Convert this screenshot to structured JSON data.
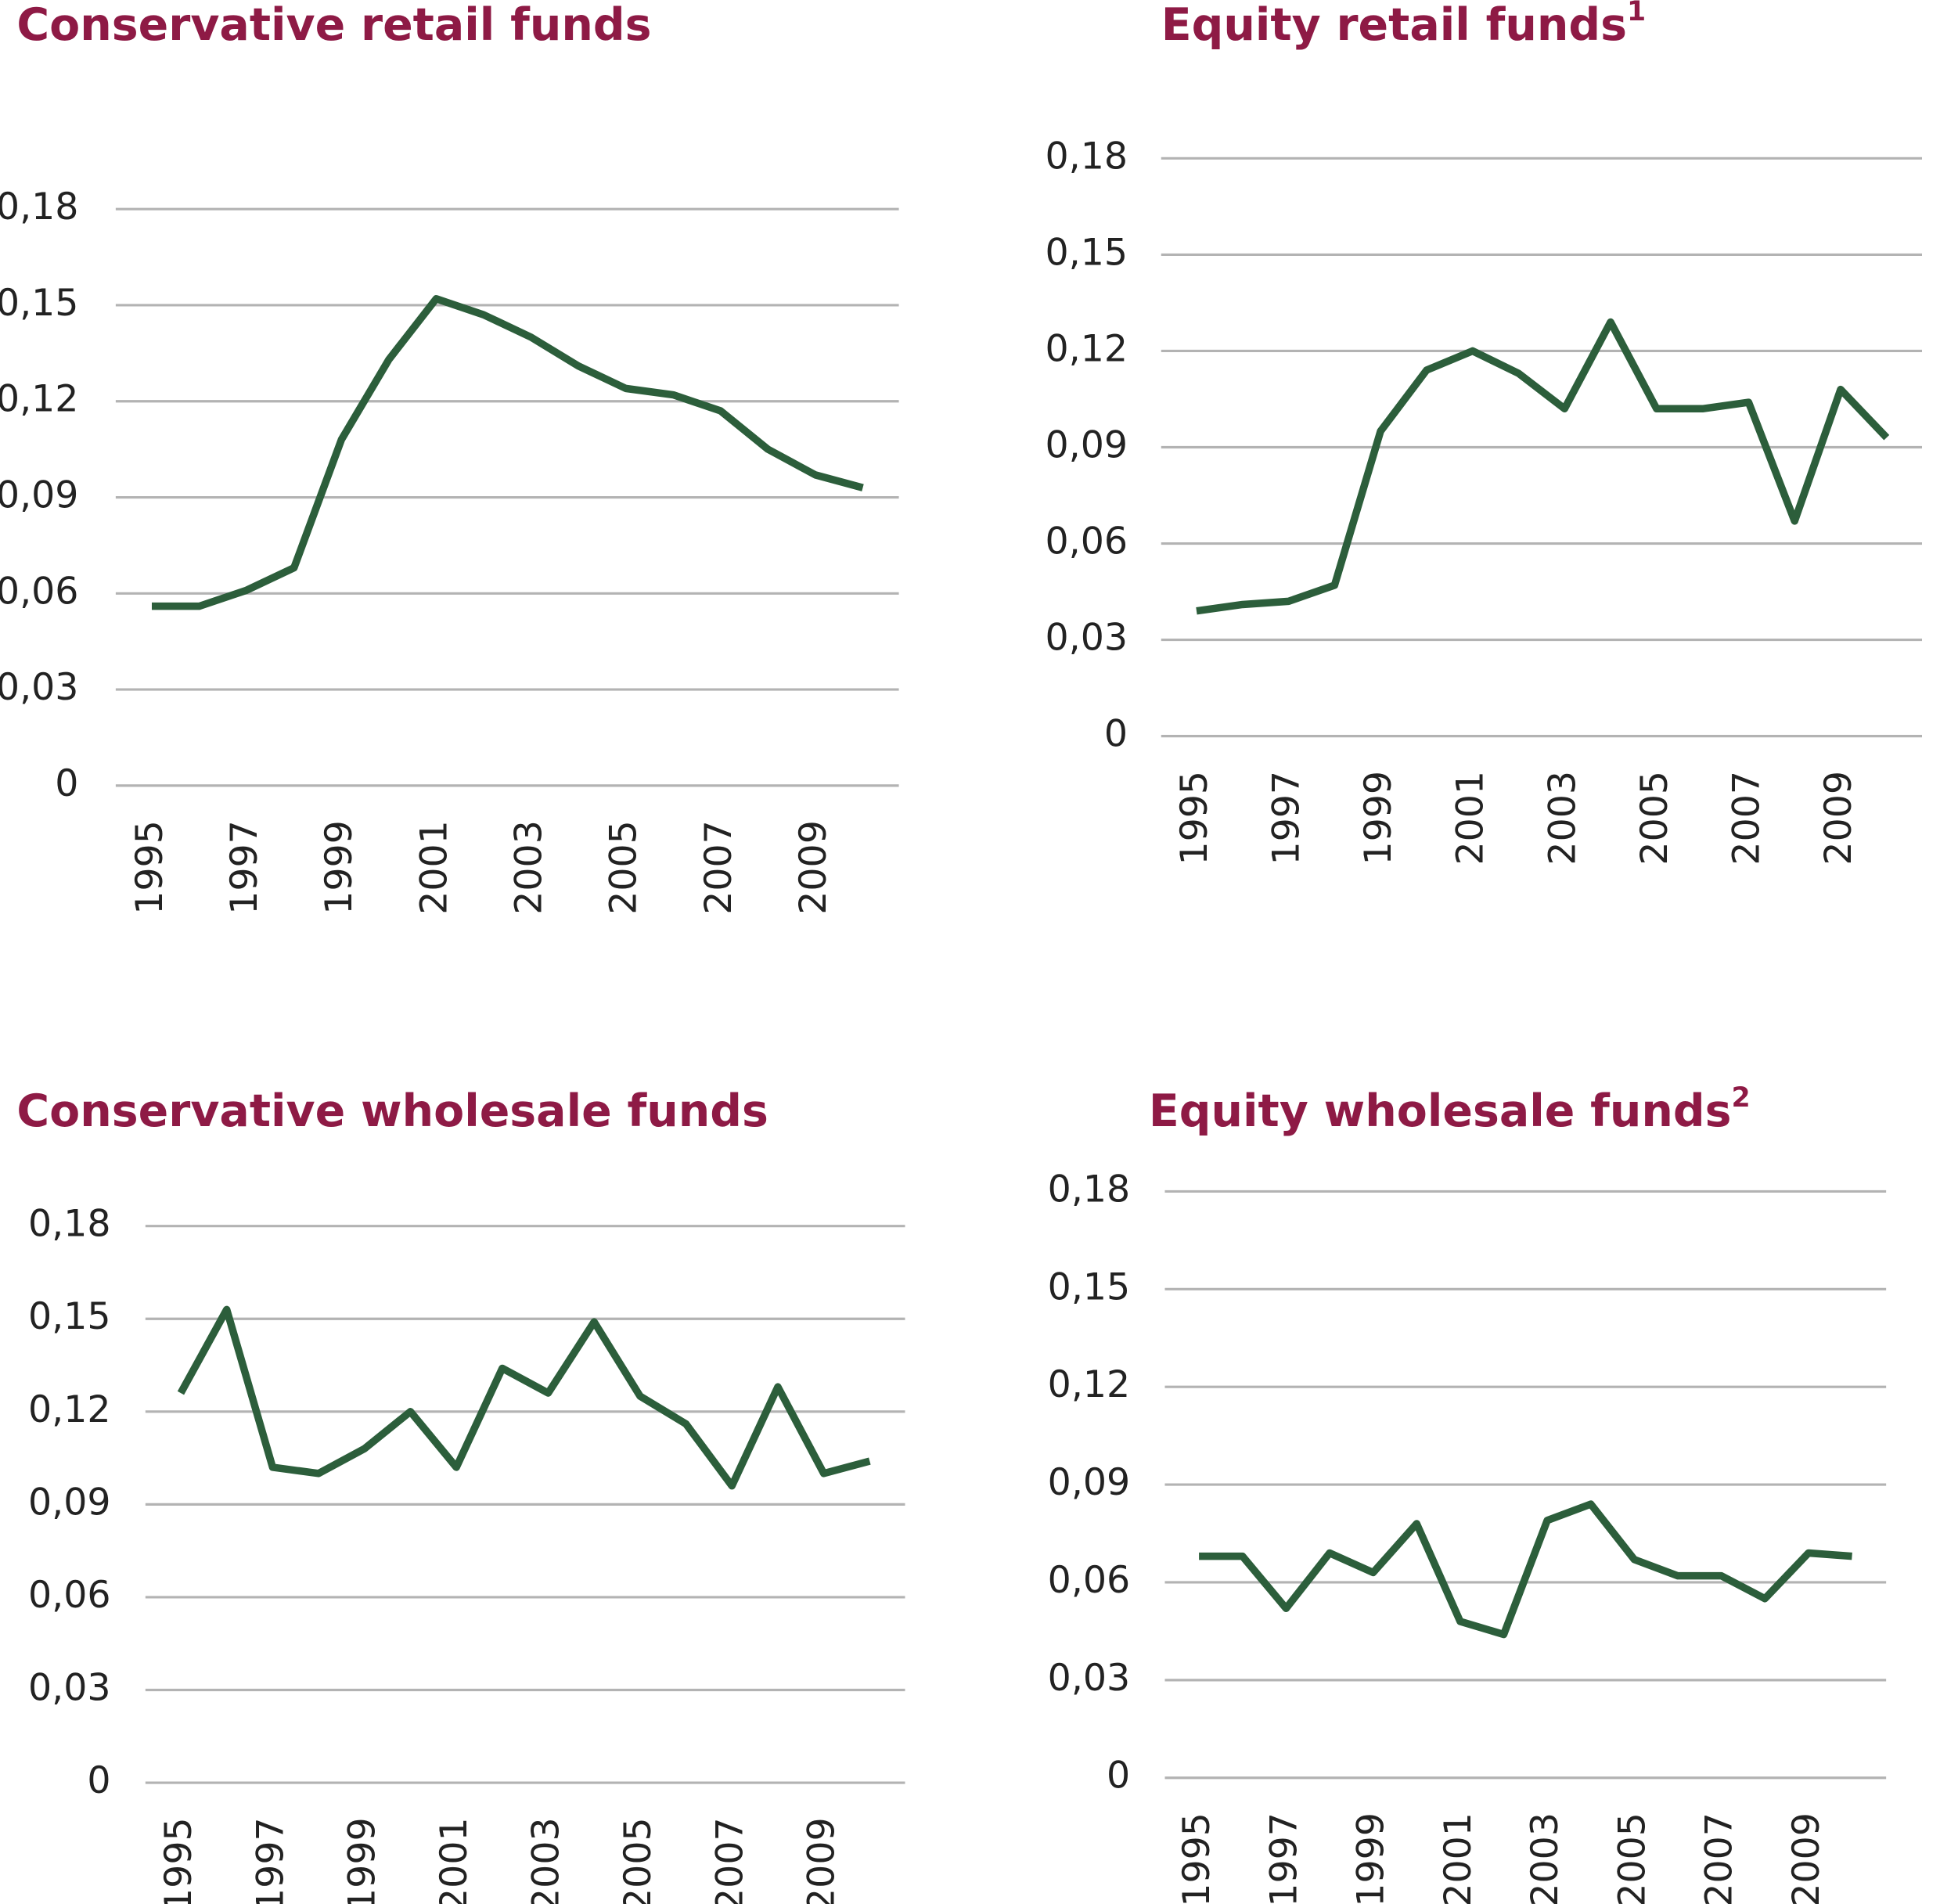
{
  "chart_data": [
    {
      "type": "line",
      "title": "Conservative retail funds",
      "color": "#2c5e3b",
      "title_color": "#8e1a45",
      "grid": true,
      "categories": [
        "1995",
        null,
        "1997",
        null,
        "1999",
        null,
        "2001",
        null,
        "2003",
        null,
        "2005",
        null,
        "2007",
        null,
        "2009",
        null
      ],
      "values": [
        0.056,
        0.056,
        0.061,
        0.068,
        0.108,
        0.133,
        0.152,
        0.147,
        0.14,
        0.131,
        0.124,
        0.122,
        0.117,
        0.105,
        0.097,
        0.093
      ],
      "ylim": [
        0,
        0.18
      ],
      "yticks": [
        0,
        {
          "value": 0.03,
          "label": "0,03"
        },
        {
          "value": 0.06,
          "label": "0,06"
        },
        {
          "value": 0.09,
          "label": "0,09"
        },
        {
          "value": 0.12,
          "label": "0,12"
        },
        {
          "value": 0.15,
          "label": "0,15"
        },
        {
          "value": 0.18,
          "label": "0,18"
        }
      ]
    },
    {
      "type": "line",
      "title": "Equity retail funds",
      "title_note": "1",
      "color": "#2c5e3b",
      "title_color": "#8e1a45",
      "grid": true,
      "categories": [
        "1995",
        null,
        "1997",
        null,
        "1999",
        null,
        "2001",
        null,
        "2003",
        null,
        "2005",
        null,
        "2007",
        null,
        "2009",
        null
      ],
      "values": [
        0.039,
        0.041,
        0.042,
        0.047,
        0.095,
        0.114,
        0.12,
        0.113,
        0.102,
        0.129,
        0.102,
        0.102,
        0.104,
        0.067,
        0.108,
        0.093
      ],
      "ylim": [
        0,
        0.18
      ],
      "yticks": [
        0,
        {
          "value": 0.03,
          "label": "0,03"
        },
        {
          "value": 0.06,
          "label": "0,06"
        },
        {
          "value": 0.09,
          "label": "0,09"
        },
        {
          "value": 0.12,
          "label": "0,12"
        },
        {
          "value": 0.15,
          "label": "0,15"
        },
        {
          "value": 0.18,
          "label": "0,18"
        }
      ]
    },
    {
      "type": "line",
      "title": "Conservative wholesale funds",
      "color": "#2c5e3b",
      "title_color": "#8e1a45",
      "grid": true,
      "categories": [
        "1995",
        null,
        "1997",
        null,
        "1999",
        null,
        "2001",
        null,
        "2003",
        null,
        "2005",
        null,
        "2007",
        null,
        "2009",
        null
      ],
      "values": [
        0.126,
        0.153,
        0.102,
        0.1,
        0.108,
        0.12,
        0.102,
        0.134,
        0.126,
        0.149,
        0.125,
        0.116,
        0.096,
        0.128,
        0.1,
        0.104
      ],
      "ylim": [
        0,
        0.18
      ],
      "yticks": [
        0,
        {
          "value": 0.03,
          "label": "0,03"
        },
        {
          "value": 0.06,
          "label": "0,06"
        },
        {
          "value": 0.09,
          "label": "0,09"
        },
        {
          "value": 0.12,
          "label": "0,12"
        },
        {
          "value": 0.15,
          "label": "0,15"
        },
        {
          "value": 0.18,
          "label": "0,18"
        }
      ]
    },
    {
      "type": "line",
      "title": "Equity wholesale funds",
      "title_note": "2",
      "color": "#2c5e3b",
      "title_color": "#8e1a45",
      "grid": true,
      "categories": [
        "1995",
        null,
        "1997",
        null,
        "1999",
        null,
        "2001",
        null,
        "2003",
        null,
        "2005",
        null,
        "2007",
        null,
        "2009",
        null
      ],
      "values": [
        0.068,
        0.068,
        0.052,
        0.069,
        0.063,
        0.078,
        0.048,
        0.044,
        0.079,
        0.084,
        0.067,
        0.062,
        0.062,
        0.055,
        0.069,
        0.068
      ],
      "ylim": [
        0,
        0.18
      ],
      "yticks": [
        0,
        {
          "value": 0.03,
          "label": "0,03"
        },
        {
          "value": 0.06,
          "label": "0,06"
        },
        {
          "value": 0.09,
          "label": "0,09"
        },
        {
          "value": 0.12,
          "label": "0,12"
        },
        {
          "value": 0.15,
          "label": "0,15"
        },
        {
          "value": 0.18,
          "label": "0,18"
        }
      ]
    }
  ]
}
